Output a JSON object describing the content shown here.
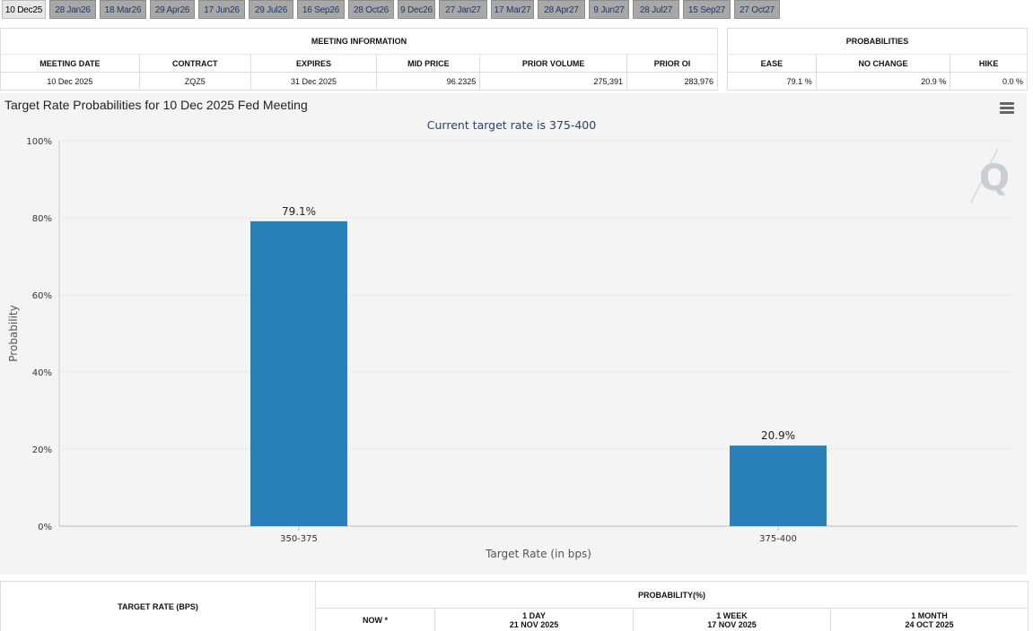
{
  "tabs": [
    "10 Dec25",
    "28 Jan26",
    "18 Mar26",
    "29 Apr26",
    "17 Jun26",
    "29 Jul26",
    "16 Sep26",
    "28 Oct26",
    "9 Dec26",
    "27 Jan27",
    "17 Mar27",
    "28 Apr27",
    "9 Jun27",
    "28 Jul27",
    "15 Sep27",
    "27 Oct27"
  ],
  "meeting_info": {
    "title": "MEETING INFORMATION",
    "headers": [
      "MEETING DATE",
      "CONTRACT",
      "EXPIRES",
      "MID PRICE",
      "PRIOR VOLUME",
      "PRIOR OI"
    ],
    "row": [
      "10 Dec 2025",
      "ZQZ5",
      "31 Dec 2025",
      "96.2325",
      "275,391",
      "283,976"
    ]
  },
  "probabilities": {
    "title": "PROBABILITIES",
    "headers": [
      "EASE",
      "NO CHANGE",
      "HIKE"
    ],
    "row": [
      "79.1 %",
      "20.9 %",
      "0.0 %"
    ]
  },
  "chart_data": {
    "type": "bar",
    "title": "Target Rate Probabilities for 10 Dec 2025 Fed Meeting",
    "subtitle": "Current target rate is 375-400",
    "categories": [
      "350-375",
      "375-400"
    ],
    "values": [
      79.1,
      20.9
    ],
    "data_labels": [
      "79.1%",
      "20.9%"
    ],
    "xlabel": "Target Rate (in bps)",
    "ylabel": "Probability",
    "ylim": [
      0,
      100
    ],
    "yticks": [
      "0%",
      "20%",
      "40%",
      "60%",
      "80%",
      "100%"
    ],
    "grid": true,
    "bar_color": "#2980b9"
  },
  "bottom_table": {
    "target_rate_header": "TARGET RATE (BPS)",
    "probability_header": "PROBABILITY(%)",
    "now": "NOW *",
    "day_label": "1 DAY",
    "day_date": "21 NOV 2025",
    "week_label": "1 WEEK",
    "week_date": "17 NOV 2025",
    "month_label": "1 MONTH",
    "month_date": "24 OCT 2025"
  }
}
